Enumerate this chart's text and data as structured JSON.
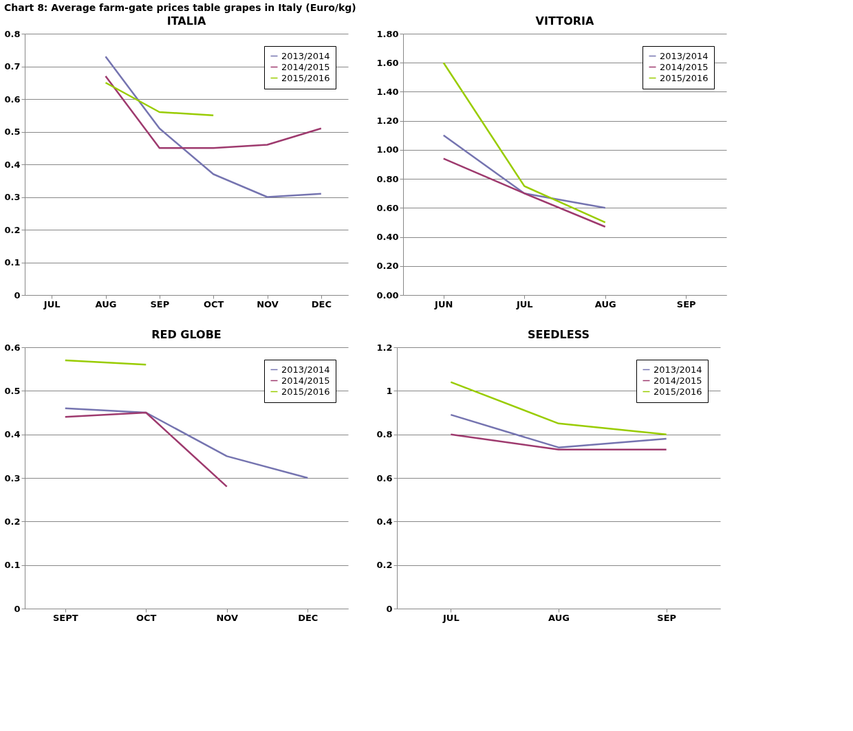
{
  "chart_data": [
    {
      "type": "line",
      "title": "ITALIA",
      "categories": [
        "JUL",
        "AUG",
        "SEP",
        "OCT",
        "NOV",
        "DEC"
      ],
      "ylim": [
        0,
        0.8
      ],
      "yticks": [
        0,
        0.1,
        0.2,
        0.3,
        0.4,
        0.5,
        0.6,
        0.7,
        0.8
      ],
      "grid": "y",
      "legend": "top right",
      "marker": "none",
      "line_style": "solid",
      "annotations": [
        "Chart 8: Average farm-gate prices table grapes in Italy (Euro/kg)"
      ],
      "series": [
        {
          "name": "2013/2014",
          "color": "#7574b0",
          "values": [
            null,
            0.73,
            0.51,
            0.37,
            0.3,
            0.31
          ]
        },
        {
          "name": "2014/2015",
          "color": "#9e3a6e",
          "values": [
            null,
            0.67,
            0.45,
            0.45,
            0.46,
            0.51
          ]
        },
        {
          "name": "2015/2016",
          "color": "#99cc00",
          "values": [
            null,
            0.65,
            0.56,
            0.55,
            null,
            null
          ]
        }
      ]
    },
    {
      "type": "line",
      "title": "VITTORIA",
      "categories": [
        "JUN",
        "JUL",
        "AUG",
        "SEP"
      ],
      "ylim": [
        0,
        1.8
      ],
      "yticks": [
        {
          "value": 0,
          "label": "0.00"
        },
        {
          "value": 0.2,
          "label": "0.20"
        },
        {
          "value": 0.4,
          "label": "0.40"
        },
        {
          "value": 0.6,
          "label": "0.60"
        },
        {
          "value": 0.8,
          "label": "0.80"
        },
        {
          "value": 1.0,
          "label": "1.00"
        },
        {
          "value": 1.2,
          "label": "1.20"
        },
        {
          "value": 1.4,
          "label": "1.40"
        },
        {
          "value": 1.6,
          "label": "1.60"
        },
        {
          "value": 1.8,
          "label": "1.80"
        }
      ],
      "grid": "y",
      "legend": "top right",
      "marker": "none",
      "line_style": "solid",
      "series": [
        {
          "name": "2013/2014",
          "color": "#7574b0",
          "values": [
            1.1,
            0.7,
            0.6,
            null
          ]
        },
        {
          "name": "2014/2015",
          "color": "#9e3a6e",
          "values": [
            0.94,
            0.7,
            0.47,
            null
          ]
        },
        {
          "name": "2015/2016",
          "color": "#99cc00",
          "values": [
            1.6,
            0.75,
            0.5,
            null
          ]
        }
      ]
    },
    {
      "type": "line",
      "title": "RED GLOBE",
      "categories": [
        "SEPT",
        "OCT",
        "NOV",
        "DEC"
      ],
      "ylim": [
        0,
        0.6
      ],
      "yticks": [
        0,
        0.1,
        0.2,
        0.3,
        0.4,
        0.5,
        0.6
      ],
      "grid": "y",
      "legend": "top right",
      "marker": "none",
      "line_style": "solid",
      "series": [
        {
          "name": "2013/2014",
          "color": "#7574b0",
          "values": [
            0.46,
            0.45,
            0.35,
            0.3
          ]
        },
        {
          "name": "2014/2015",
          "color": "#9e3a6e",
          "values": [
            0.44,
            0.45,
            0.28,
            null
          ]
        },
        {
          "name": "2015/2016",
          "color": "#99cc00",
          "values": [
            0.57,
            0.56,
            null,
            null
          ]
        }
      ]
    },
    {
      "type": "line",
      "title": "SEEDLESS",
      "categories": [
        "JUL",
        "AUG",
        "SEP"
      ],
      "ylim": [
        0,
        1.2
      ],
      "yticks": [
        0,
        0.2,
        0.4,
        0.6,
        0.8,
        1,
        1.2
      ],
      "grid": "y",
      "legend": "top right",
      "marker": "none",
      "line_style": "solid",
      "series": [
        {
          "name": "2013/2014",
          "color": "#7574b0",
          "values": [
            0.89,
            0.74,
            0.78
          ]
        },
        {
          "name": "2014/2015",
          "color": "#9e3a6e",
          "values": [
            0.8,
            0.73,
            0.73
          ]
        },
        {
          "name": "2015/2016",
          "color": "#99cc00",
          "values": [
            1.04,
            0.85,
            0.8
          ]
        }
      ]
    }
  ]
}
